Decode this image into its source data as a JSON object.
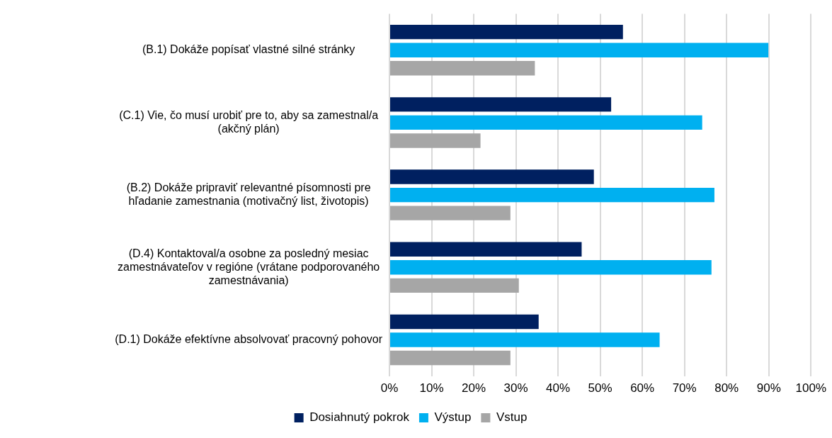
{
  "chart_data": {
    "type": "bar",
    "orientation": "horizontal",
    "categories": [
      "(B.1) Dokáže popísať vlastné silné stránky",
      "(C.1) Vie, čo musí urobiť pre to, aby sa zamestnal/a (akčný plán)",
      "(B.2) Dokáže pripraviť relevantné písomnosti pre hľadanie zamestnania (motivačný list, životopis)",
      "(D.4) Kontaktoval/a osobne za posledný mesiac zamestnávateľov v regióne (vrátane podporovaného zamestnávania)",
      "(D.1) Dokáže efektívne absolvovať pracovný pohovor"
    ],
    "series": [
      {
        "name": "Dosiahnutý pokrok",
        "color": "#002060",
        "values": [
          55.4,
          52.6,
          48.5,
          45.6,
          35.4
        ]
      },
      {
        "name": "Výstup",
        "color": "#00b0f0",
        "values": [
          89.9,
          74.2,
          77.1,
          76.4,
          64.1
        ]
      },
      {
        "name": "Vstup",
        "color": "#a6a6a6",
        "values": [
          34.5,
          21.6,
          28.7,
          30.7,
          28.7
        ]
      }
    ],
    "xlim": [
      0,
      100
    ],
    "xticks": [
      {
        "value": 0,
        "label": "0%"
      },
      {
        "value": 10,
        "label": "10%"
      },
      {
        "value": 20,
        "label": "20%"
      },
      {
        "value": 30,
        "label": "30%"
      },
      {
        "value": 40,
        "label": "40%"
      },
      {
        "value": 50,
        "label": "50%"
      },
      {
        "value": 60,
        "label": "60%"
      },
      {
        "value": 70,
        "label": "70%"
      },
      {
        "value": 80,
        "label": "80%"
      },
      {
        "value": 90,
        "label": "90%"
      },
      {
        "value": 100,
        "label": "100%"
      }
    ],
    "grid": "x",
    "legend": "bottom"
  }
}
